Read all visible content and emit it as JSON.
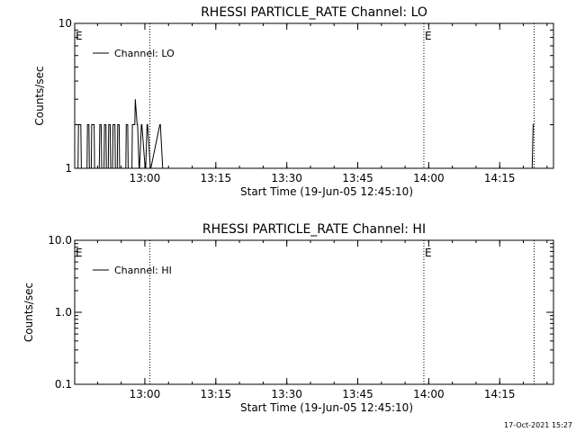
{
  "footer": {
    "timestamp": "17-Oct-2021 15:27"
  },
  "chart_data": [
    {
      "type": "line",
      "title": "RHESSI PARTICLE_RATE Channel: LO",
      "xlabel": "Start Time (19-Jun-05 12:45:10)",
      "ylabel": "Counts/sec",
      "x_unit": "minutes after 12:45:10",
      "xlim": [
        0,
        101.2
      ],
      "x_ticks": [
        {
          "label": "13:00",
          "value": 14.83
        },
        {
          "label": "13:15",
          "value": 29.83
        },
        {
          "label": "13:30",
          "value": 44.83
        },
        {
          "label": "13:45",
          "value": 59.83
        },
        {
          "label": "14:00",
          "value": 74.83
        },
        {
          "label": "14:15",
          "value": 89.83
        }
      ],
      "y_scale": "log",
      "ylim": [
        1,
        10
      ],
      "y_ticks": [
        {
          "label": "10",
          "value": 10
        },
        {
          "label": "1",
          "value": 1
        }
      ],
      "legend": {
        "placement": "top-left",
        "entries": [
          "Channel: LO"
        ]
      },
      "markers": [
        {
          "label": "E",
          "x": 0
        },
        {
          "label": "E",
          "x": 73.8
        }
      ],
      "dotted_lines": [
        15.9,
        73.8,
        97.1
      ],
      "series": [
        {
          "name": "Channel: LO",
          "x": [
            0,
            0.7,
            0.8,
            1.3,
            1.4,
            2.6,
            2.7,
            3.0,
            3.1,
            3.5,
            3.6,
            4.1,
            4.2,
            5.2,
            5.3,
            5.6,
            5.7,
            6.2,
            6.3,
            6.6,
            6.7,
            7.1,
            7.2,
            7.5,
            7.6,
            8.0,
            8.1,
            8.5,
            8.6,
            9.0,
            9.1,
            9.4,
            9.5,
            10.8,
            10.9,
            11.2,
            11.3,
            12.1,
            12.2,
            12.7,
            12.8,
            13.2,
            13.3,
            13.6,
            13.7,
            14.1,
            14.2,
            14.9,
            15.0,
            15.3,
            15.4,
            16.0,
            16.1,
            18.0,
            18.1,
            18.6,
            18.7,
            101.2
          ],
          "y": [
            1,
            1,
            2,
            2,
            1,
            1,
            2,
            2,
            1,
            1,
            2,
            2,
            1,
            1,
            2,
            2,
            1,
            1,
            2,
            2,
            1,
            1,
            2,
            2,
            1,
            1,
            2,
            2,
            1,
            1,
            2,
            2,
            1,
            1,
            2,
            2,
            1,
            1,
            2,
            2,
            3,
            2,
            2,
            1,
            1,
            2,
            2,
            1,
            1,
            2,
            2,
            1,
            1,
            2,
            2,
            1,
            1,
            1
          ]
        },
        {
          "name": "",
          "x": [
            96.6,
            96.7,
            96.9,
            97.1
          ],
          "y": [
            1,
            1,
            2,
            2
          ]
        }
      ]
    },
    {
      "type": "line",
      "title": "RHESSI PARTICLE_RATE Channel: HI",
      "xlabel": "Start Time (19-Jun-05 12:45:10)",
      "ylabel": "Counts/sec",
      "x_unit": "minutes after 12:45:10",
      "xlim": [
        0,
        101.2
      ],
      "x_ticks": [
        {
          "label": "13:00",
          "value": 14.83
        },
        {
          "label": "13:15",
          "value": 29.83
        },
        {
          "label": "13:30",
          "value": 44.83
        },
        {
          "label": "13:45",
          "value": 59.83
        },
        {
          "label": "14:00",
          "value": 74.83
        },
        {
          "label": "14:15",
          "value": 89.83
        }
      ],
      "y_scale": "log",
      "ylim": [
        0.1,
        10
      ],
      "y_ticks": [
        {
          "label": "10.0",
          "value": 10
        },
        {
          "label": "1.0",
          "value": 1
        },
        {
          "label": "0.1",
          "value": 0.1
        }
      ],
      "legend": {
        "placement": "top-left",
        "entries": [
          "Channel: HI"
        ]
      },
      "markers": [
        {
          "label": "E",
          "x": 0
        },
        {
          "label": "E",
          "x": 73.8
        }
      ],
      "dotted_lines": [
        15.9,
        73.8,
        97.1
      ],
      "series": [
        {
          "name": "Channel: HI",
          "x": [],
          "y": []
        }
      ]
    }
  ]
}
